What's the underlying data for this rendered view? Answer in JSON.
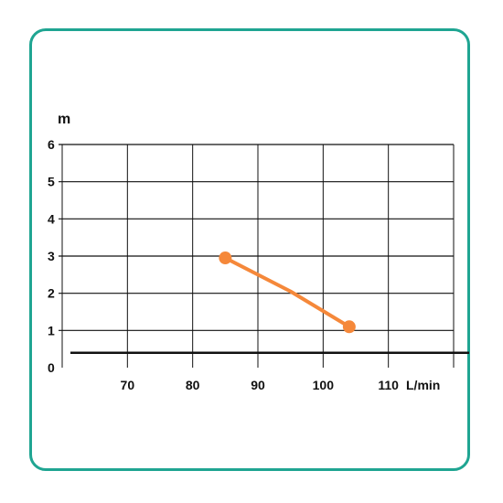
{
  "colors": {
    "frame": "#1fa592",
    "series": "#f5883a",
    "grid": "#111111"
  },
  "chart_data": {
    "type": "line",
    "xlabel": "L/min",
    "ylabel": "m",
    "xlim": [
      60,
      120
    ],
    "ylim": [
      0,
      6
    ],
    "x_ticks": [
      "70",
      "80",
      "90",
      "100",
      "110"
    ],
    "y_ticks": [
      "0",
      "1",
      "2",
      "3",
      "4",
      "5",
      "6"
    ],
    "grid": true,
    "reference_line": {
      "y": 0.4
    },
    "series": [
      {
        "x": [
          85,
          95,
          104
        ],
        "y": [
          2.95,
          2.05,
          1.1
        ],
        "markers": "endpoints"
      }
    ]
  }
}
